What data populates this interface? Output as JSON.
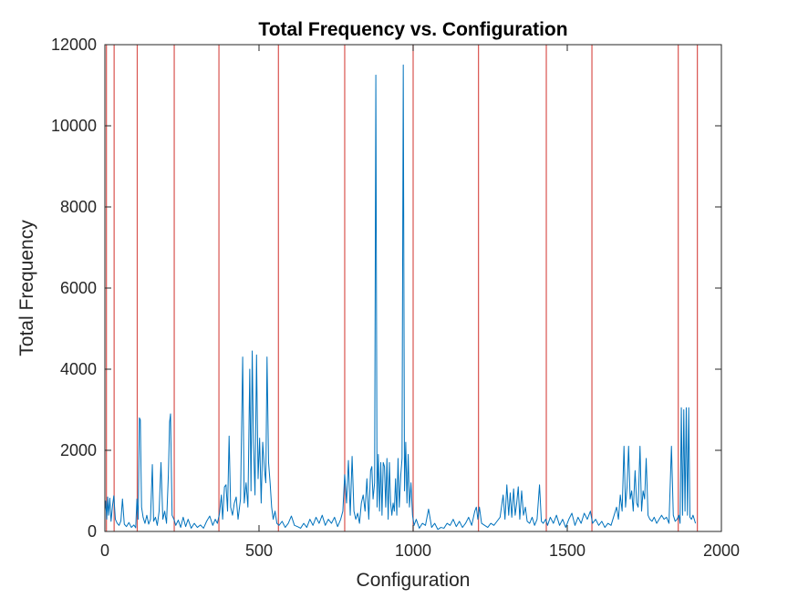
{
  "chart_data": {
    "type": "line",
    "title": "Total Frequency vs. Configuration",
    "xlabel": "Configuration",
    "ylabel": "Total Frequency",
    "xlim": [
      0,
      2000
    ],
    "ylim": [
      0,
      12000
    ],
    "x_ticks": [
      0,
      500,
      1000,
      1500,
      2000
    ],
    "y_ticks": [
      0,
      2000,
      4000,
      6000,
      8000,
      10000,
      12000
    ],
    "grid": false,
    "legend": "none",
    "colors": {
      "series": "#0072BD",
      "vlines": "#D9534F",
      "axes": "#262626"
    },
    "vertical_lines_x": [
      5,
      30,
      105,
      225,
      370,
      563,
      778,
      1000,
      1212,
      1432,
      1580,
      1860,
      1922
    ],
    "series": [
      {
        "points": [
          [
            0,
            500
          ],
          [
            3,
            750
          ],
          [
            6,
            300
          ],
          [
            9,
            850
          ],
          [
            12,
            400
          ],
          [
            16,
            820
          ],
          [
            20,
            250
          ],
          [
            25,
            650
          ],
          [
            29,
            880
          ],
          [
            34,
            300
          ],
          [
            40,
            200
          ],
          [
            46,
            150
          ],
          [
            52,
            260
          ],
          [
            57,
            800
          ],
          [
            63,
            180
          ],
          [
            70,
            120
          ],
          [
            78,
            220
          ],
          [
            86,
            100
          ],
          [
            94,
            160
          ],
          [
            100,
            90
          ],
          [
            104,
            800
          ],
          [
            108,
            300
          ],
          [
            112,
            2800
          ],
          [
            115,
            2750
          ],
          [
            119,
            600
          ],
          [
            124,
            350
          ],
          [
            130,
            200
          ],
          [
            136,
            400
          ],
          [
            142,
            180
          ],
          [
            148,
            300
          ],
          [
            154,
            1650
          ],
          [
            158,
            250
          ],
          [
            164,
            350
          ],
          [
            170,
            150
          ],
          [
            176,
            500
          ],
          [
            182,
            1700
          ],
          [
            188,
            300
          ],
          [
            194,
            500
          ],
          [
            200,
            200
          ],
          [
            206,
            1400
          ],
          [
            210,
            2700
          ],
          [
            213,
            2900
          ],
          [
            218,
            400
          ],
          [
            224,
            300
          ],
          [
            230,
            150
          ],
          [
            238,
            280
          ],
          [
            246,
            100
          ],
          [
            254,
            350
          ],
          [
            262,
            120
          ],
          [
            270,
            300
          ],
          [
            280,
            80
          ],
          [
            290,
            200
          ],
          [
            300,
            100
          ],
          [
            310,
            160
          ],
          [
            320,
            80
          ],
          [
            330,
            250
          ],
          [
            340,
            380
          ],
          [
            350,
            150
          ],
          [
            358,
            300
          ],
          [
            365,
            200
          ],
          [
            372,
            450
          ],
          [
            378,
            900
          ],
          [
            382,
            300
          ],
          [
            388,
            1100
          ],
          [
            393,
            1150
          ],
          [
            398,
            500
          ],
          [
            403,
            2350
          ],
          [
            408,
            600
          ],
          [
            414,
            400
          ],
          [
            420,
            700
          ],
          [
            426,
            850
          ],
          [
            432,
            300
          ],
          [
            440,
            800
          ],
          [
            447,
            4300
          ],
          [
            452,
            700
          ],
          [
            458,
            1200
          ],
          [
            464,
            600
          ],
          [
            470,
            4000
          ],
          [
            474,
            1000
          ],
          [
            478,
            4450
          ],
          [
            482,
            2200
          ],
          [
            487,
            900
          ],
          [
            492,
            4350
          ],
          [
            497,
            1300
          ],
          [
            502,
            2300
          ],
          [
            507,
            700
          ],
          [
            512,
            2200
          ],
          [
            518,
            1500
          ],
          [
            522,
            1200
          ],
          [
            526,
            4300
          ],
          [
            531,
            1700
          ],
          [
            536,
            1200
          ],
          [
            541,
            600
          ],
          [
            546,
            300
          ],
          [
            552,
            500
          ],
          [
            558,
            200
          ],
          [
            565,
            150
          ],
          [
            575,
            250
          ],
          [
            585,
            100
          ],
          [
            595,
            200
          ],
          [
            605,
            380
          ],
          [
            615,
            150
          ],
          [
            625,
            120
          ],
          [
            635,
            80
          ],
          [
            645,
            200
          ],
          [
            655,
            100
          ],
          [
            665,
            300
          ],
          [
            675,
            150
          ],
          [
            685,
            350
          ],
          [
            695,
            200
          ],
          [
            705,
            400
          ],
          [
            715,
            150
          ],
          [
            725,
            300
          ],
          [
            735,
            200
          ],
          [
            745,
            350
          ],
          [
            755,
            120
          ],
          [
            765,
            300
          ],
          [
            772,
            500
          ],
          [
            778,
            1400
          ],
          [
            784,
            700
          ],
          [
            790,
            1750
          ],
          [
            796,
            400
          ],
          [
            802,
            1850
          ],
          [
            808,
            500
          ],
          [
            814,
            300
          ],
          [
            820,
            450
          ],
          [
            826,
            200
          ],
          [
            832,
            700
          ],
          [
            838,
            900
          ],
          [
            844,
            500
          ],
          [
            850,
            1300
          ],
          [
            856,
            300
          ],
          [
            862,
            1500
          ],
          [
            866,
            1600
          ],
          [
            870,
            800
          ],
          [
            875,
            1200
          ],
          [
            879,
            11250
          ],
          [
            883,
            600
          ],
          [
            887,
            1900
          ],
          [
            891,
            500
          ],
          [
            895,
            1700
          ],
          [
            899,
            400
          ],
          [
            903,
            1700
          ],
          [
            907,
            1600
          ],
          [
            911,
            600
          ],
          [
            915,
            1800
          ],
          [
            919,
            300
          ],
          [
            923,
            1700
          ],
          [
            927,
            700
          ],
          [
            931,
            400
          ],
          [
            935,
            700
          ],
          [
            939,
            500
          ],
          [
            943,
            1300
          ],
          [
            947,
            400
          ],
          [
            951,
            1800
          ],
          [
            955,
            600
          ],
          [
            960,
            1400
          ],
          [
            964,
            1800
          ],
          [
            968,
            11500
          ],
          [
            972,
            1000
          ],
          [
            976,
            2200
          ],
          [
            980,
            700
          ],
          [
            984,
            1900
          ],
          [
            988,
            600
          ],
          [
            993,
            1200
          ],
          [
            998,
            400
          ],
          [
            1003,
            150
          ],
          [
            1010,
            300
          ],
          [
            1020,
            80
          ],
          [
            1030,
            200
          ],
          [
            1040,
            150
          ],
          [
            1050,
            550
          ],
          [
            1060,
            100
          ],
          [
            1070,
            200
          ],
          [
            1080,
            50
          ],
          [
            1090,
            100
          ],
          [
            1100,
            80
          ],
          [
            1110,
            200
          ],
          [
            1120,
            150
          ],
          [
            1130,
            300
          ],
          [
            1140,
            120
          ],
          [
            1150,
            250
          ],
          [
            1160,
            100
          ],
          [
            1170,
            200
          ],
          [
            1180,
            350
          ],
          [
            1190,
            150
          ],
          [
            1200,
            500
          ],
          [
            1205,
            600
          ],
          [
            1210,
            300
          ],
          [
            1215,
            600
          ],
          [
            1222,
            200
          ],
          [
            1232,
            150
          ],
          [
            1242,
            100
          ],
          [
            1252,
            200
          ],
          [
            1262,
            150
          ],
          [
            1272,
            250
          ],
          [
            1282,
            350
          ],
          [
            1292,
            900
          ],
          [
            1298,
            300
          ],
          [
            1304,
            1150
          ],
          [
            1310,
            400
          ],
          [
            1315,
            950
          ],
          [
            1320,
            350
          ],
          [
            1326,
            1050
          ],
          [
            1331,
            400
          ],
          [
            1336,
            700
          ],
          [
            1341,
            1100
          ],
          [
            1346,
            300
          ],
          [
            1352,
            1000
          ],
          [
            1358,
            400
          ],
          [
            1364,
            600
          ],
          [
            1370,
            250
          ],
          [
            1378,
            200
          ],
          [
            1386,
            350
          ],
          [
            1394,
            150
          ],
          [
            1402,
            300
          ],
          [
            1410,
            1150
          ],
          [
            1416,
            250
          ],
          [
            1422,
            200
          ],
          [
            1430,
            300
          ],
          [
            1436,
            150
          ],
          [
            1445,
            350
          ],
          [
            1455,
            200
          ],
          [
            1465,
            400
          ],
          [
            1475,
            150
          ],
          [
            1485,
            300
          ],
          [
            1495,
            100
          ],
          [
            1505,
            300
          ],
          [
            1515,
            450
          ],
          [
            1525,
            150
          ],
          [
            1535,
            350
          ],
          [
            1545,
            200
          ],
          [
            1555,
            450
          ],
          [
            1565,
            300
          ],
          [
            1575,
            500
          ],
          [
            1582,
            200
          ],
          [
            1592,
            300
          ],
          [
            1602,
            150
          ],
          [
            1612,
            250
          ],
          [
            1622,
            100
          ],
          [
            1632,
            200
          ],
          [
            1642,
            150
          ],
          [
            1652,
            400
          ],
          [
            1660,
            600
          ],
          [
            1666,
            300
          ],
          [
            1672,
            900
          ],
          [
            1678,
            500
          ],
          [
            1684,
            2100
          ],
          [
            1689,
            600
          ],
          [
            1694,
            1100
          ],
          [
            1699,
            2100
          ],
          [
            1704,
            800
          ],
          [
            1709,
            1000
          ],
          [
            1714,
            500
          ],
          [
            1720,
            1500
          ],
          [
            1725,
            700
          ],
          [
            1730,
            600
          ],
          [
            1736,
            2100
          ],
          [
            1741,
            500
          ],
          [
            1746,
            1000
          ],
          [
            1751,
            800
          ],
          [
            1756,
            1800
          ],
          [
            1762,
            400
          ],
          [
            1768,
            300
          ],
          [
            1775,
            250
          ],
          [
            1782,
            350
          ],
          [
            1790,
            200
          ],
          [
            1798,
            300
          ],
          [
            1806,
            400
          ],
          [
            1814,
            300
          ],
          [
            1822,
            350
          ],
          [
            1830,
            200
          ],
          [
            1838,
            2100
          ],
          [
            1844,
            400
          ],
          [
            1850,
            250
          ],
          [
            1856,
            300
          ],
          [
            1862,
            400
          ],
          [
            1866,
            200
          ],
          [
            1870,
            3050
          ],
          [
            1874,
            400
          ],
          [
            1878,
            3000
          ],
          [
            1882,
            500
          ],
          [
            1886,
            3050
          ],
          [
            1890,
            400
          ],
          [
            1894,
            3050
          ],
          [
            1898,
            350
          ],
          [
            1903,
            300
          ],
          [
            1908,
            400
          ],
          [
            1912,
            300
          ],
          [
            1916,
            200
          ]
        ]
      }
    ]
  }
}
